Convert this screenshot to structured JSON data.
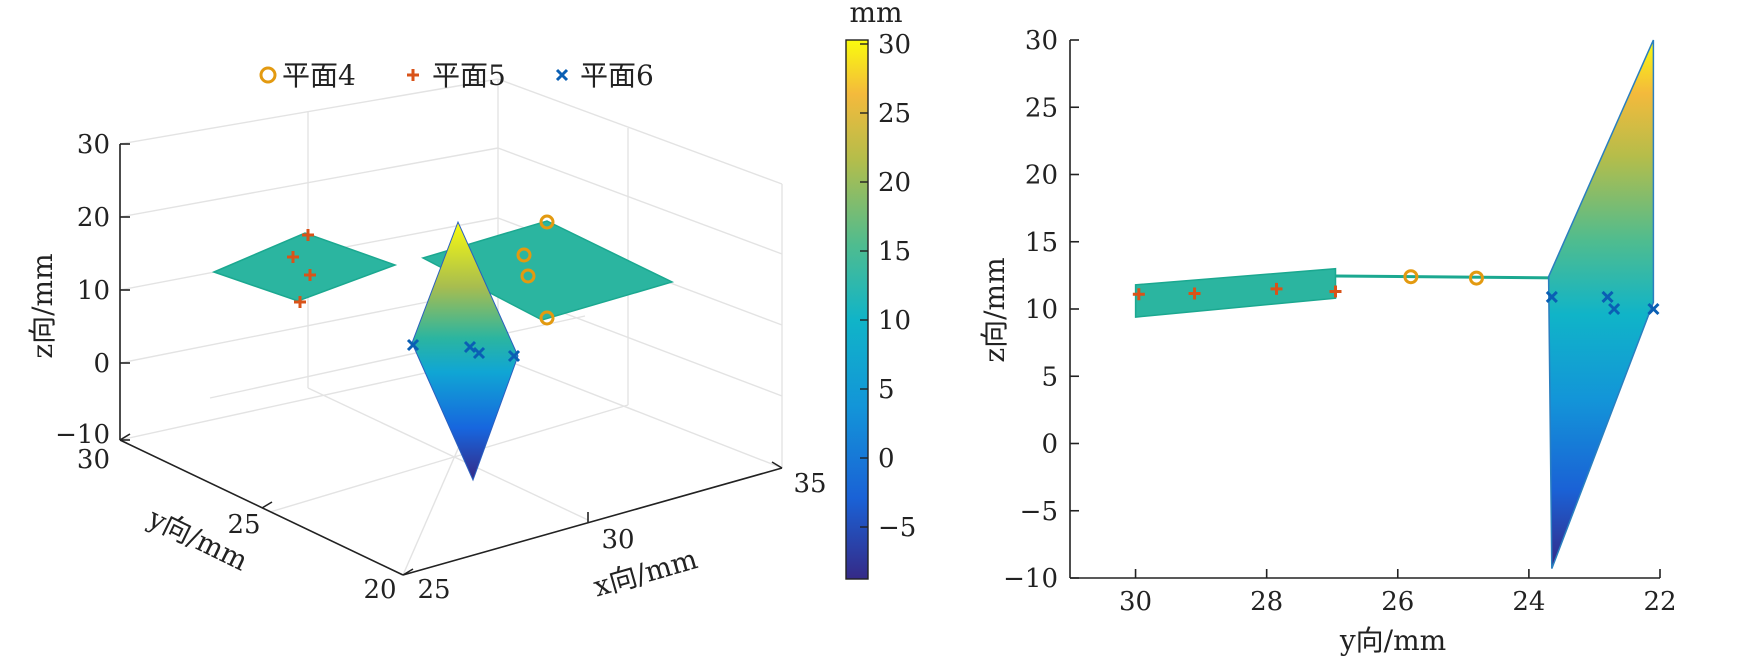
{
  "chart_data": [
    {
      "type": "surface3d",
      "xlabel": "x向/mm",
      "ylabel": "y向/mm",
      "zlabel": "z向/mm",
      "xlim": [
        25,
        35
      ],
      "ylim": [
        20,
        30
      ],
      "zlim": [
        -10,
        30
      ],
      "xticks": [
        "25",
        "30",
        "35"
      ],
      "yticks": [
        "30",
        "25",
        "20"
      ],
      "zticks": [
        "30",
        "20",
        "10",
        "0",
        "−10"
      ],
      "legend": {
        "placement": "top",
        "entries": [
          {
            "name": "平面4",
            "marker": "circle",
            "color": "#EDB120"
          },
          {
            "name": "平面5",
            "marker": "plus",
            "color": "#D95319"
          },
          {
            "name": "平面6",
            "marker": "x",
            "color": "#0072BD"
          }
        ]
      },
      "grid": true,
      "colormap": "parula"
    },
    {
      "type": "colorbar",
      "unit_label": "mm",
      "range": [
        -9,
        30
      ],
      "ticks": [
        "30",
        "25",
        "20",
        "15",
        "10",
        "5",
        "0",
        "−5"
      ]
    },
    {
      "type": "projection_yz",
      "xlabel": "y向/mm",
      "ylabel": "z向/mm",
      "xlim": [
        31,
        22
      ],
      "ylim": [
        -10,
        30
      ],
      "xticks": [
        30,
        28,
        26,
        24,
        22
      ],
      "yticks": [
        30,
        25,
        20,
        15,
        10,
        5,
        0,
        -5,
        -10
      ],
      "xtick_labels": [
        "30",
        "28",
        "26",
        "24",
        "22"
      ],
      "ytick_labels": [
        "30",
        "25",
        "20",
        "15",
        "10",
        "5",
        "0",
        "−5",
        "−10"
      ],
      "series": [
        {
          "name": "平面4",
          "marker": "circle",
          "color": "#EDB120",
          "points": [
            [
              25.8,
              12.4
            ],
            [
              24.8,
              12.3
            ]
          ]
        },
        {
          "name": "平面5",
          "marker": "plus",
          "color": "#D95319",
          "points": [
            [
              29.95,
              11.1
            ],
            [
              29.1,
              11.15
            ],
            [
              27.85,
              11.5
            ],
            [
              26.95,
              11.3
            ]
          ]
        },
        {
          "name": "平面6",
          "marker": "x",
          "color": "#0072BD",
          "points": [
            [
              23.65,
              10.9
            ],
            [
              22.8,
              10.9
            ],
            [
              22.7,
              10.0
            ],
            [
              22.1,
              10.0
            ]
          ]
        }
      ],
      "surfaces": [
        {
          "name": "平面5",
          "outline": [
            [
              30.0,
              9.4
            ],
            [
              26.95,
              10.8
            ],
            [
              26.95,
              13.0
            ],
            [
              30.0,
              11.8
            ]
          ],
          "fill": "#2BB5A0"
        },
        {
          "name": "平面4",
          "outline": [
            [
              26.95,
              12.45
            ],
            [
              23.2,
              12.3
            ]
          ],
          "fill": "#2BB5A0"
        },
        {
          "name": "平面6",
          "outline": [
            [
              23.7,
              12.4
            ],
            [
              22.1,
              30.0
            ],
            [
              22.1,
              10.5
            ],
            [
              23.65,
              -9.3
            ]
          ],
          "fill": "gradient"
        }
      ]
    }
  ]
}
